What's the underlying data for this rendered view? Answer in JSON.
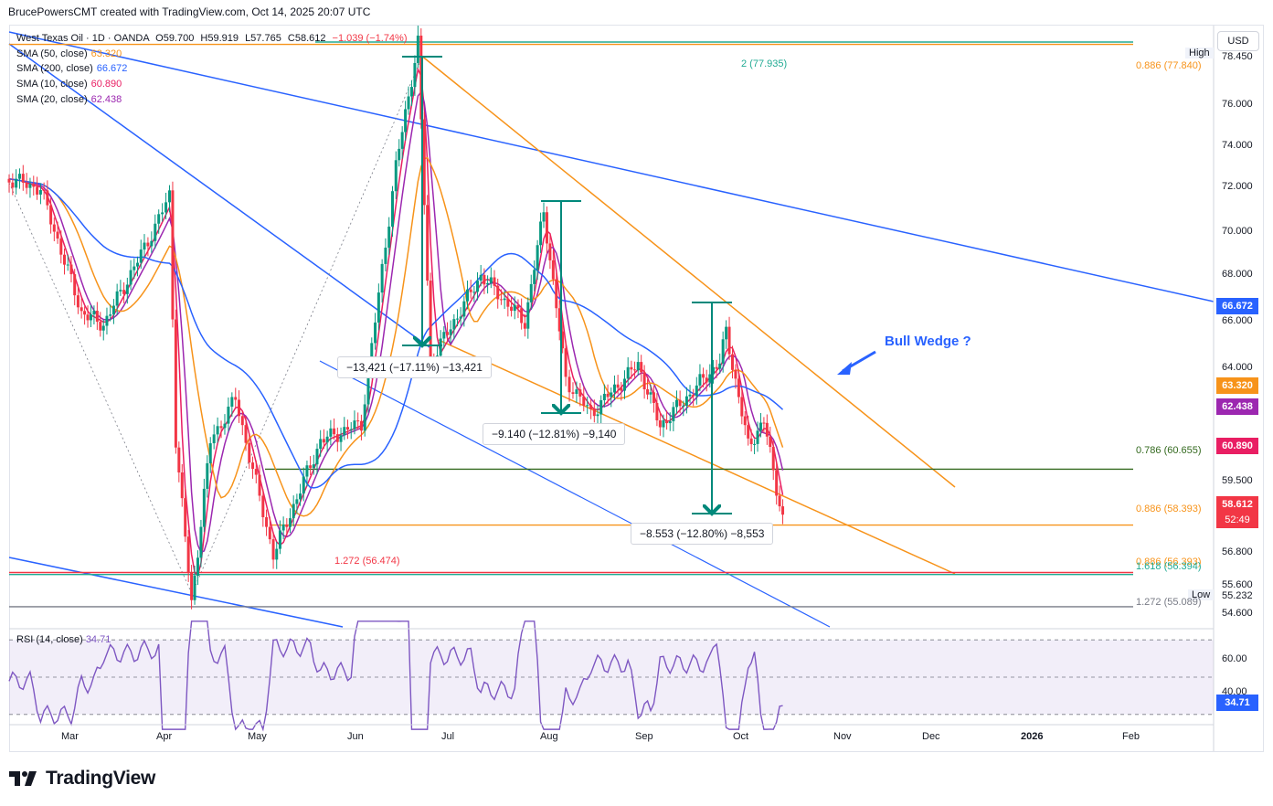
{
  "header": {
    "caption": "BrucePowersCMT created with TradingView.com, Oct 14, 2025 20:07 UTC"
  },
  "symbol": {
    "name": "West Texas Oil · 1D · OANDA",
    "o": "O59.700",
    "h": "H59.919",
    "l": "L57.765",
    "c": "C58.612",
    "chg": "−1.039 (−1.74%)"
  },
  "indicators": [
    {
      "label": "SMA (50, close)",
      "value": "63.320",
      "color": "#f7931a"
    },
    {
      "label": "SMA (200, close)",
      "value": "66.672",
      "color": "#2962ff"
    },
    {
      "label": "SMA (10, close)",
      "value": "60.890",
      "color": "#e91e63"
    },
    {
      "label": "SMA (20, close)",
      "value": "62.438",
      "color": "#9c27b0"
    }
  ],
  "rsi": {
    "label": "RSI (14, close)",
    "value": "34.71",
    "ticks": [
      "60.00",
      "40.00"
    ]
  },
  "currency": "USD",
  "price_axis": [
    "78.450",
    "76.000",
    "74.000",
    "72.000",
    "70.000",
    "68.000",
    "66.000",
    "64.000",
    "59.500",
    "56.800",
    "55.600",
    "54.600"
  ],
  "price_tags": [
    {
      "value": "66.672",
      "color": "#2962ff"
    },
    {
      "value": "63.320",
      "color": "#f7931a"
    },
    {
      "value": "62.438",
      "color": "#9c27b0"
    },
    {
      "value": "60.890",
      "color": "#e91e63"
    },
    {
      "value": "58.612",
      "color": "#f23645",
      "sub": "52:49"
    },
    {
      "value": "34.71",
      "color": "#2962ff"
    }
  ],
  "extremes": {
    "high_label": "High",
    "high_value": "78.450",
    "low_label": "Low",
    "low_value": "55.232"
  },
  "x_axis": [
    "Mar",
    "Apr",
    "May",
    "Jun",
    "Jul",
    "Aug",
    "Sep",
    "Oct",
    "Nov",
    "Dec",
    "2026",
    "Feb"
  ],
  "measurements": [
    {
      "text": "−13,421 (−17.11%) −13,421"
    },
    {
      "text": "−9.140 (−12.81%) −9,140"
    },
    {
      "text": "−8.553 (−12.80%) −8,553"
    }
  ],
  "fib_labels": [
    {
      "text": "2 (77.935)",
      "color": "#22ab94"
    },
    {
      "text": "0.886 (77.840)",
      "color": "#f7931a"
    },
    {
      "text": "0.786 (60.655)",
      "color": "#33691e"
    },
    {
      "text": "0.886 (58.393)",
      "color": "#f7931a"
    },
    {
      "text": "1.272 (56.474)",
      "color": "#f23645"
    },
    {
      "text": "0.886 (56.393)",
      "color": "#f7931a"
    },
    {
      "text": "1.618 (56.394)",
      "color": "#22ab94"
    },
    {
      "text": "1.272 (55.089)",
      "color": "#787b86"
    }
  ],
  "annotation": "Bull Wedge ?",
  "brand": "TradingView",
  "chart_data": {
    "type": "candlestick",
    "title": "West Texas Oil · 1D · OANDA",
    "ylabel": "USD",
    "ylim": [
      54.2,
      78.6
    ],
    "x_range": [
      "2025-02-10",
      "2026-02-28"
    ],
    "ohlc_last": {
      "open": 59.7,
      "high": 59.919,
      "low": 57.765,
      "close": 58.612
    },
    "close_path": [
      {
        "date": "2025-02-10",
        "price": 72.4
      },
      {
        "date": "2025-02-20",
        "price": 72.0
      },
      {
        "date": "2025-03-05",
        "price": 67.0
      },
      {
        "date": "2025-03-12",
        "price": 66.5
      },
      {
        "date": "2025-03-25",
        "price": 69.6
      },
      {
        "date": "2025-04-02",
        "price": 71.7
      },
      {
        "date": "2025-04-04",
        "price": 61.9
      },
      {
        "date": "2025-04-09",
        "price": 55.2
      },
      {
        "date": "2025-04-15",
        "price": 61.8
      },
      {
        "date": "2025-04-23",
        "price": 63.5
      },
      {
        "date": "2025-05-05",
        "price": 57.2
      },
      {
        "date": "2025-05-20",
        "price": 61.8
      },
      {
        "date": "2025-06-02",
        "price": 62.5
      },
      {
        "date": "2025-06-13",
        "price": 72.9
      },
      {
        "date": "2025-06-20",
        "price": 77.9
      },
      {
        "date": "2025-06-24",
        "price": 65.0
      },
      {
        "date": "2025-07-10",
        "price": 68.5
      },
      {
        "date": "2025-07-24",
        "price": 66.6
      },
      {
        "date": "2025-07-30",
        "price": 71.1
      },
      {
        "date": "2025-08-06",
        "price": 64.3
      },
      {
        "date": "2025-08-14",
        "price": 62.9
      },
      {
        "date": "2025-08-29",
        "price": 64.9
      },
      {
        "date": "2025-09-05",
        "price": 62.4
      },
      {
        "date": "2025-09-24",
        "price": 65.0
      },
      {
        "date": "2025-09-26",
        "price": 66.2
      },
      {
        "date": "2025-10-03",
        "price": 61.6
      },
      {
        "date": "2025-10-08",
        "price": 62.6
      },
      {
        "date": "2025-10-14",
        "price": 58.612
      }
    ],
    "sma_last": {
      "SMA 50": 63.32,
      "SMA 200": 66.672,
      "SMA 10": 60.89,
      "SMA 20": 62.438
    },
    "fib_levels": [
      77.935,
      77.84,
      60.655,
      58.393,
      56.474,
      56.393,
      56.394,
      55.089
    ],
    "rsi_last": 34.71,
    "rsi_ylim": [
      25,
      75
    ]
  }
}
